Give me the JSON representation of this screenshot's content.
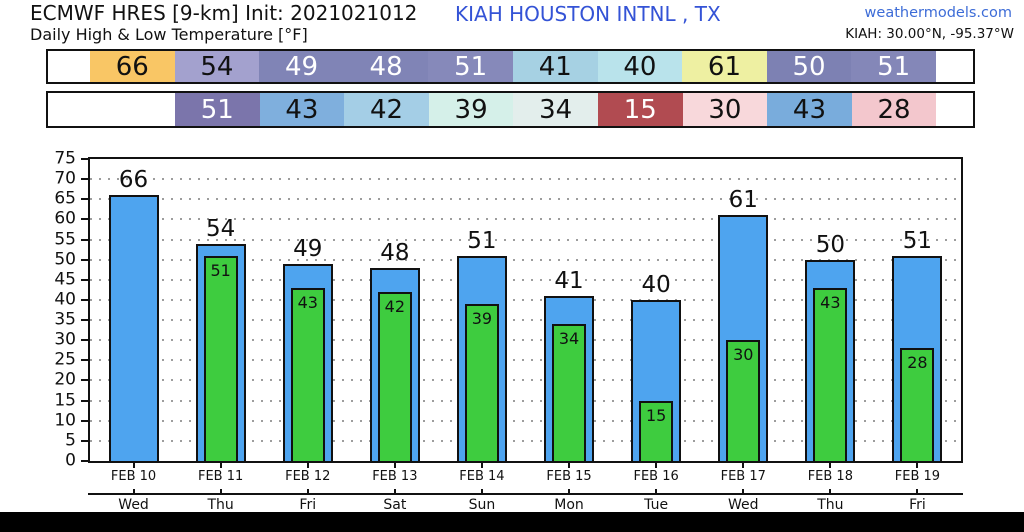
{
  "header": {
    "title": "ECMWF HRES [9-km] Init: 2021021012",
    "subtitle": "Daily High & Low Temperature [°F]",
    "station": "KIAH HOUSTON INTNL , TX",
    "site": "weathermodels.com",
    "coords": "KIAH: 30.00°N, -95.37°W"
  },
  "strip_high": {
    "name": "daily-high-values",
    "cells": [
      {
        "value": "66",
        "bg": "#f9c665",
        "fg": "#111111"
      },
      {
        "value": "54",
        "bg": "#a3a1ce",
        "fg": "#111111"
      },
      {
        "value": "49",
        "bg": "#8084b6",
        "fg": "#ffffff"
      },
      {
        "value": "48",
        "bg": "#8084b6",
        "fg": "#ffffff"
      },
      {
        "value": "51",
        "bg": "#8689ba",
        "fg": "#ffffff"
      },
      {
        "value": "41",
        "bg": "#a6d1e3",
        "fg": "#111111"
      },
      {
        "value": "40",
        "bg": "#b9e3eb",
        "fg": "#111111"
      },
      {
        "value": "61",
        "bg": "#eef0a2",
        "fg": "#111111"
      },
      {
        "value": "50",
        "bg": "#7d81b3",
        "fg": "#ffffff"
      },
      {
        "value": "51",
        "bg": "#8487b8",
        "fg": "#ffffff"
      }
    ]
  },
  "strip_low": {
    "name": "daily-low-values",
    "cells": [
      {
        "value": "51",
        "bg": "#7b75ab",
        "fg": "#ffffff"
      },
      {
        "value": "43",
        "bg": "#7fafdd",
        "fg": "#111111"
      },
      {
        "value": "42",
        "bg": "#a4cee6",
        "fg": "#111111"
      },
      {
        "value": "39",
        "bg": "#d5f0e9",
        "fg": "#111111"
      },
      {
        "value": "34",
        "bg": "#e3eeec",
        "fg": "#111111"
      },
      {
        "value": "15",
        "bg": "#b14b51",
        "fg": "#ffffff"
      },
      {
        "value": "30",
        "bg": "#f8d8db",
        "fg": "#111111"
      },
      {
        "value": "43",
        "bg": "#79acdc",
        "fg": "#111111"
      },
      {
        "value": "28",
        "bg": "#f3c7cd",
        "fg": "#111111"
      }
    ]
  },
  "chart_data": {
    "type": "bar",
    "title": "Daily High & Low Temperature [°F]",
    "categories": [
      "FEB 10",
      "FEB 11",
      "FEB 12",
      "FEB 13",
      "FEB 14",
      "FEB 15",
      "FEB 16",
      "FEB 17",
      "FEB 18",
      "FEB 19"
    ],
    "day_labels": [
      "Wed",
      "Thu",
      "Fri",
      "Sat",
      "Sun",
      "Mon",
      "Tue",
      "Wed",
      "Thu",
      "Fri"
    ],
    "series": [
      {
        "name": "High",
        "color": "#4ea4ef",
        "values": [
          66,
          54,
          49,
          48,
          51,
          41,
          40,
          61,
          50,
          51
        ]
      },
      {
        "name": "Low",
        "color": "#3ecc3f",
        "values": [
          null,
          51,
          43,
          42,
          39,
          34,
          15,
          30,
          43,
          28
        ]
      }
    ],
    "xlabel": "",
    "ylabel": "",
    "ylim": [
      0,
      75
    ],
    "ytick_step": 5,
    "yticks": [
      0,
      5,
      10,
      15,
      20,
      25,
      30,
      35,
      40,
      45,
      50,
      55,
      60,
      65,
      70,
      75
    ],
    "grid": true,
    "grid_style": "dotted",
    "legend_position": "none",
    "bar_border_color": "#111111"
  },
  "layout_colors": {
    "station_text": "#3453d6",
    "site_link": "#3d6cd7",
    "axis": "#111111"
  }
}
